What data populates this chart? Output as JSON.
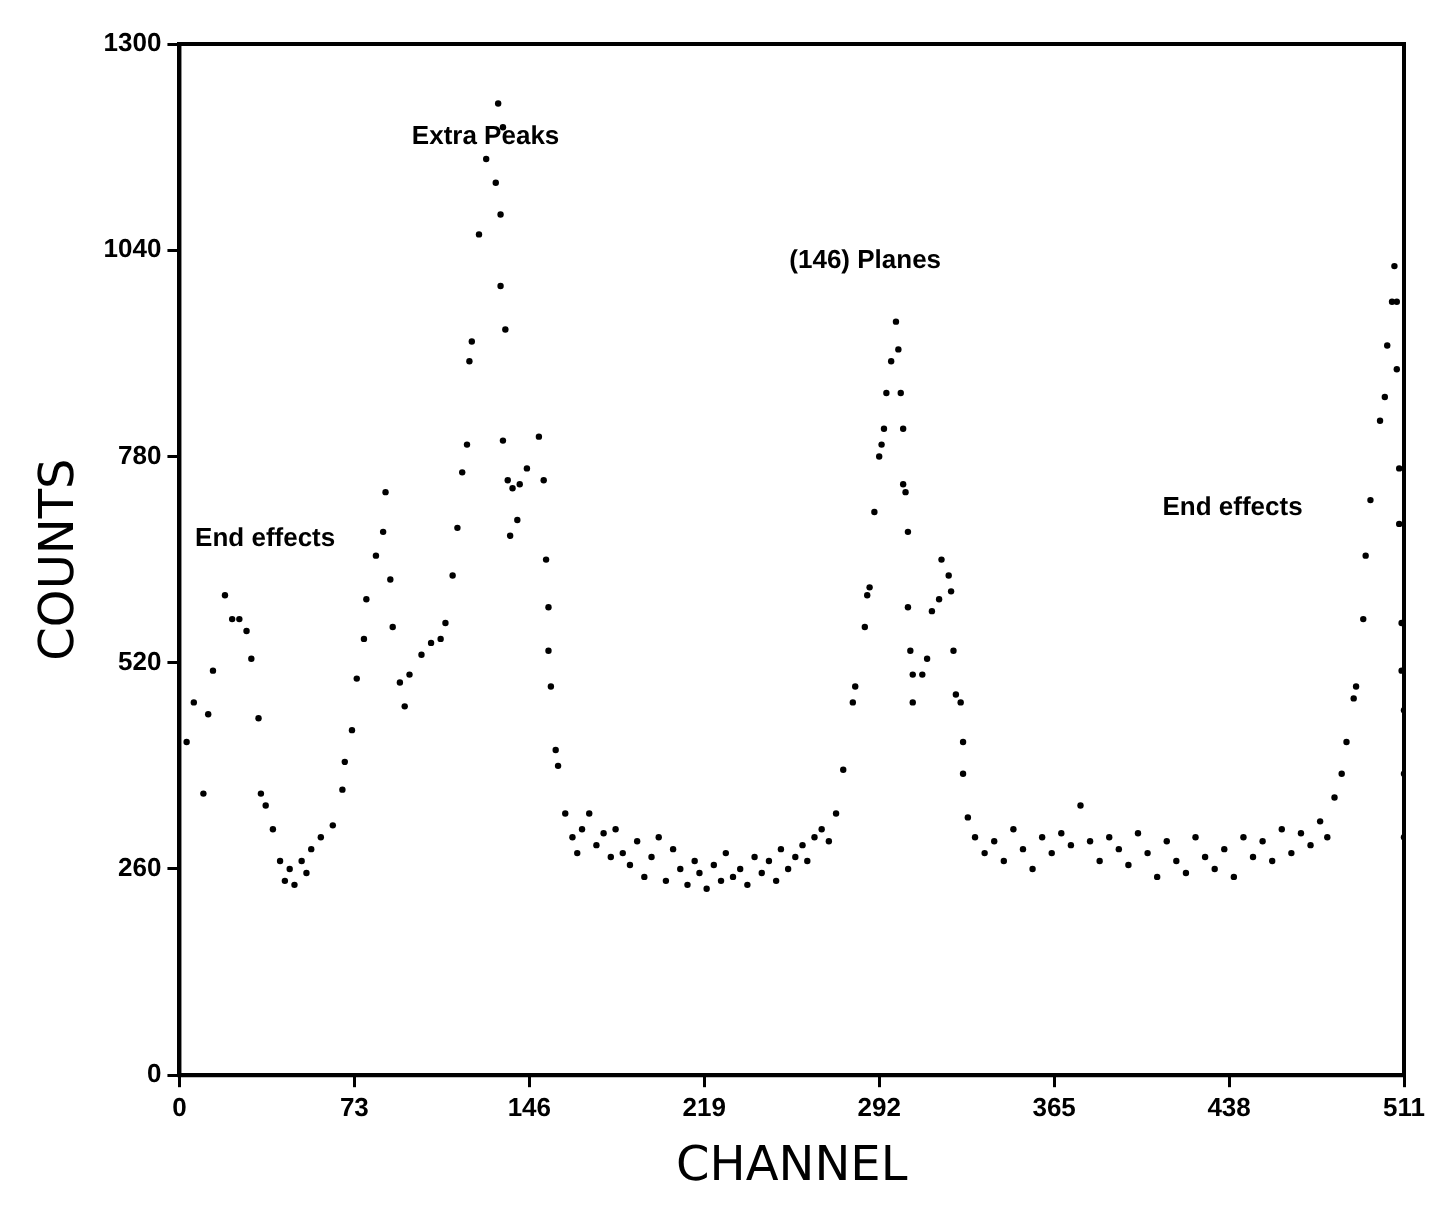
{
  "chart_data": {
    "type": "scatter",
    "xlabel": "CHANNEL",
    "ylabel": "COUNTS",
    "xlim": [
      0,
      511
    ],
    "xticks": [
      0,
      73,
      146,
      219,
      292,
      365,
      438,
      511
    ],
    "ylim": [
      0,
      1300
    ],
    "yticks": [
      0,
      260,
      520,
      780,
      1040,
      1300
    ],
    "grid": false,
    "legend": false,
    "marker": "circle",
    "annotations": [
      "End effects",
      "Extra Peaks",
      "(146) Planes",
      "End effects"
    ],
    "series": [
      {
        "color": "#000000",
        "x": [
          3,
          6,
          10,
          12,
          14,
          19,
          22,
          25,
          28,
          30,
          33,
          34,
          36,
          39,
          42,
          44,
          46,
          48,
          51,
          53,
          55,
          59,
          64,
          68,
          69,
          72,
          74,
          77,
          78,
          82,
          85,
          86,
          88,
          89,
          92,
          94,
          96,
          101,
          105,
          109,
          111,
          114,
          116,
          118,
          120,
          121,
          122,
          125,
          128,
          132,
          133,
          134,
          134,
          135,
          135,
          136,
          137,
          138,
          139,
          141,
          142,
          145,
          150,
          152,
          153,
          154,
          154,
          155,
          157,
          158,
          161,
          164,
          166,
          168,
          171,
          174,
          177,
          180,
          182,
          185,
          188,
          191,
          194,
          197,
          200,
          203,
          206,
          209,
          212,
          215,
          217,
          220,
          223,
          226,
          228,
          231,
          234,
          237,
          240,
          243,
          246,
          249,
          251,
          254,
          257,
          260,
          262,
          265,
          268,
          271,
          274,
          277,
          281,
          282,
          286,
          287,
          288,
          290,
          292,
          293,
          294,
          295,
          297,
          299,
          300,
          301,
          302,
          302,
          303,
          304,
          304,
          305,
          306,
          306,
          310,
          312,
          314,
          317,
          318,
          321,
          322,
          323,
          324,
          326,
          327,
          327,
          329,
          332,
          336,
          340,
          344,
          348,
          352,
          356,
          360,
          364,
          368,
          372,
          376,
          380,
          384,
          388,
          392,
          396,
          400,
          404,
          408,
          412,
          416,
          420,
          424,
          428,
          432,
          436,
          440,
          444,
          448,
          452,
          456,
          460,
          464,
          468,
          472,
          476,
          479,
          482,
          485,
          487,
          490,
          491,
          494,
          495,
          497,
          501,
          503,
          504,
          506,
          507,
          508,
          508,
          509,
          509,
          510,
          510,
          511,
          511,
          511
        ],
        "values": [
          420,
          470,
          355,
          455,
          510,
          605,
          575,
          575,
          560,
          525,
          450,
          355,
          340,
          310,
          270,
          245,
          260,
          240,
          270,
          255,
          285,
          300,
          315,
          360,
          395,
          435,
          500,
          550,
          600,
          655,
          685,
          735,
          625,
          565,
          495,
          465,
          505,
          530,
          545,
          550,
          570,
          630,
          690,
          760,
          795,
          900,
          925,
          1060,
          1155,
          1125,
          1225,
          1085,
          995,
          1195,
          800,
          940,
          750,
          680,
          740,
          700,
          745,
          765,
          805,
          750,
          650,
          590,
          535,
          490,
          410,
          390,
          330,
          300,
          280,
          310,
          330,
          290,
          305,
          275,
          310,
          280,
          265,
          295,
          250,
          275,
          300,
          245,
          285,
          260,
          240,
          270,
          255,
          235,
          265,
          245,
          280,
          250,
          260,
          240,
          275,
          255,
          270,
          245,
          285,
          260,
          275,
          290,
          270,
          300,
          310,
          295,
          330,
          385,
          470,
          490,
          565,
          605,
          615,
          710,
          780,
          795,
          815,
          860,
          900,
          950,
          915,
          860,
          815,
          745,
          735,
          685,
          590,
          535,
          505,
          470,
          505,
          525,
          585,
          600,
          650,
          630,
          610,
          535,
          480,
          470,
          420,
          380,
          325,
          300,
          280,
          295,
          270,
          310,
          285,
          260,
          300,
          280,
          305,
          290,
          340,
          295,
          270,
          300,
          285,
          265,
          305,
          280,
          250,
          295,
          270,
          255,
          300,
          275,
          260,
          285,
          250,
          300,
          275,
          295,
          270,
          310,
          280,
          305,
          290,
          320,
          300,
          350,
          380,
          420,
          475,
          490,
          575,
          655,
          725,
          825,
          855,
          920,
          975,
          1020,
          975,
          890,
          765,
          695,
          570,
          510,
          460,
          380,
          300
        ]
      }
    ]
  }
}
